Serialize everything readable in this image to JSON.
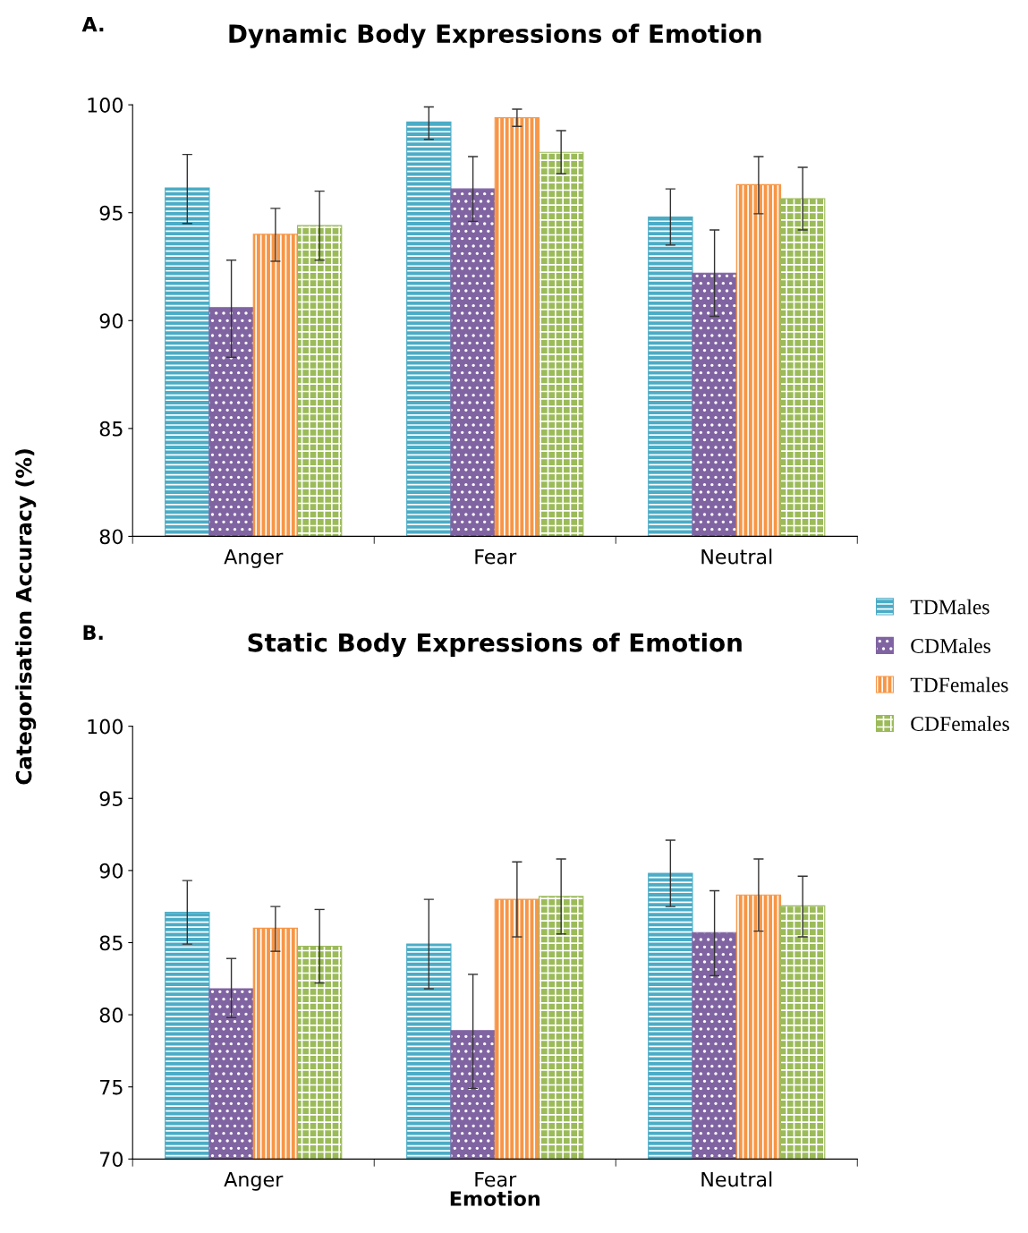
{
  "chart_data": [
    {
      "type": "bar",
      "title": "Dynamic Body Expressions of Emotion",
      "ylabel": "Categorisation Accuracy (%)",
      "annotations": [
        "A."
      ],
      "categories": [
        "Anger",
        "Fear",
        "Neutral"
      ],
      "ylim": [
        80,
        100
      ],
      "yticks": [
        80,
        85,
        90,
        95,
        100
      ],
      "legend": "right",
      "grid": false,
      "series": [
        {
          "name": "TDMales",
          "color": "#4bacc6",
          "values": [
            96.15,
            99.2,
            94.8
          ],
          "errors": [
            [
              94.5,
              97.7
            ],
            [
              98.4,
              99.9
            ],
            [
              93.5,
              96.1
            ]
          ]
        },
        {
          "name": "CDMales",
          "color": "#8064a2",
          "values": [
            90.6,
            96.1,
            92.2
          ],
          "errors": [
            [
              88.3,
              92.8
            ],
            [
              94.6,
              97.6
            ],
            [
              90.2,
              94.2
            ]
          ]
        },
        {
          "name": "TDFemales",
          "color": "#f79646",
          "values": [
            94.0,
            99.4,
            96.3
          ],
          "errors": [
            [
              92.75,
              95.2
            ],
            [
              99.0,
              99.8
            ],
            [
              94.95,
              97.6
            ]
          ]
        },
        {
          "name": "CDFemales",
          "color": "#9bbb59",
          "values": [
            94.4,
            97.8,
            95.65
          ],
          "errors": [
            [
              92.8,
              96.0
            ],
            [
              96.8,
              98.8
            ],
            [
              94.2,
              97.1
            ]
          ]
        }
      ]
    },
    {
      "type": "bar",
      "title": "Static Body Expressions of Emotion",
      "xlabel": "Emotion",
      "annotations": [
        "B."
      ],
      "categories": [
        "Anger",
        "Fear",
        "Neutral"
      ],
      "ylim": [
        70,
        100
      ],
      "yticks": [
        70,
        75,
        80,
        85,
        90,
        95,
        100
      ],
      "grid": false,
      "series": [
        {
          "color": "#4bacc6",
          "values": [
            87.1,
            84.9,
            89.8
          ],
          "errors": [
            [
              84.9,
              89.3
            ],
            [
              81.8,
              88.0
            ],
            [
              87.5,
              92.1
            ]
          ]
        },
        {
          "color": "#8064a2",
          "values": [
            81.8,
            78.9,
            85.7
          ],
          "errors": [
            [
              79.8,
              83.9
            ],
            [
              74.9,
              82.8
            ],
            [
              82.7,
              88.6
            ]
          ]
        },
        {
          "color": "#f79646",
          "values": [
            86.0,
            88.0,
            88.3
          ],
          "errors": [
            [
              84.4,
              87.5
            ],
            [
              85.4,
              90.6
            ],
            [
              85.8,
              90.8
            ]
          ]
        },
        {
          "color": "#9bbb59",
          "values": [
            84.75,
            88.2,
            87.55
          ],
          "errors": [
            [
              82.2,
              87.3
            ],
            [
              85.6,
              90.8
            ],
            [
              85.4,
              89.6
            ]
          ]
        }
      ]
    }
  ]
}
